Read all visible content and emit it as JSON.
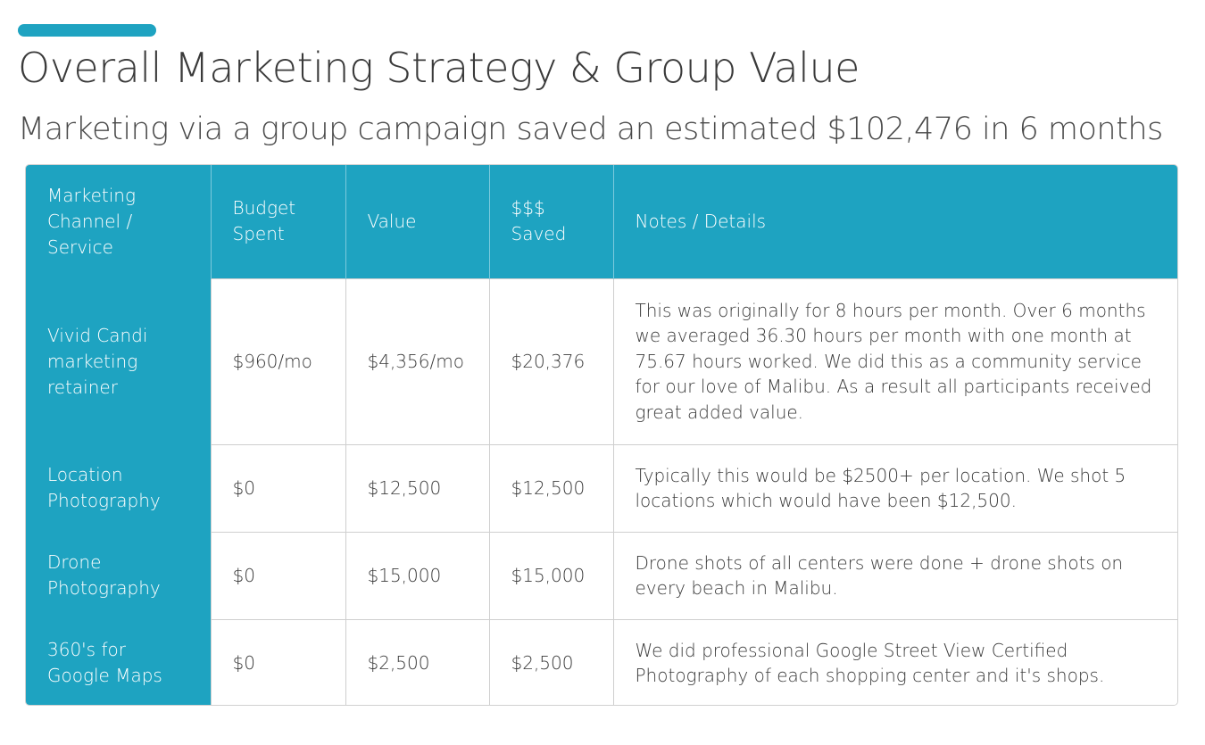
{
  "header": {
    "title": "Overall Marketing Strategy & Group Value",
    "subtitle": "Marketing via a group campaign saved an estimated $102,476 in 6 months",
    "accent_color": "#1ea3c1"
  },
  "table": {
    "columns": [
      "Marketing Channel / Service",
      "Budget Spent",
      "Value",
      "$$$ Saved",
      "Notes / Details"
    ],
    "rows": [
      {
        "channel": "Vivid Candi marketing retainer",
        "budget": "$960/mo",
        "value": "$4,356/mo",
        "saved": "$20,376",
        "notes": "This was originally for 8 hours per month. Over 6 months we averaged 36.30 hours per month with one month at 75.67 hours worked. We did this as a community service for our love of Malibu. As a result all participants received great added value."
      },
      {
        "channel": "Location Photography",
        "budget": "$0",
        "value": "$12,500",
        "saved": "$12,500",
        "notes": "Typically this would be $2500+ per location. We shot 5 locations which would have been $12,500."
      },
      {
        "channel": "Drone Photography",
        "budget": "$0",
        "value": "$15,000",
        "saved": "$15,000",
        "notes": "Drone shots of all centers were done + drone shots on every beach in Malibu."
      },
      {
        "channel": "360's for Google Maps",
        "budget": "$0",
        "value": "$2,500",
        "saved": "$2,500",
        "notes": "We did professional Google Street View Certified Photography of each shopping center and it's shops."
      }
    ]
  }
}
